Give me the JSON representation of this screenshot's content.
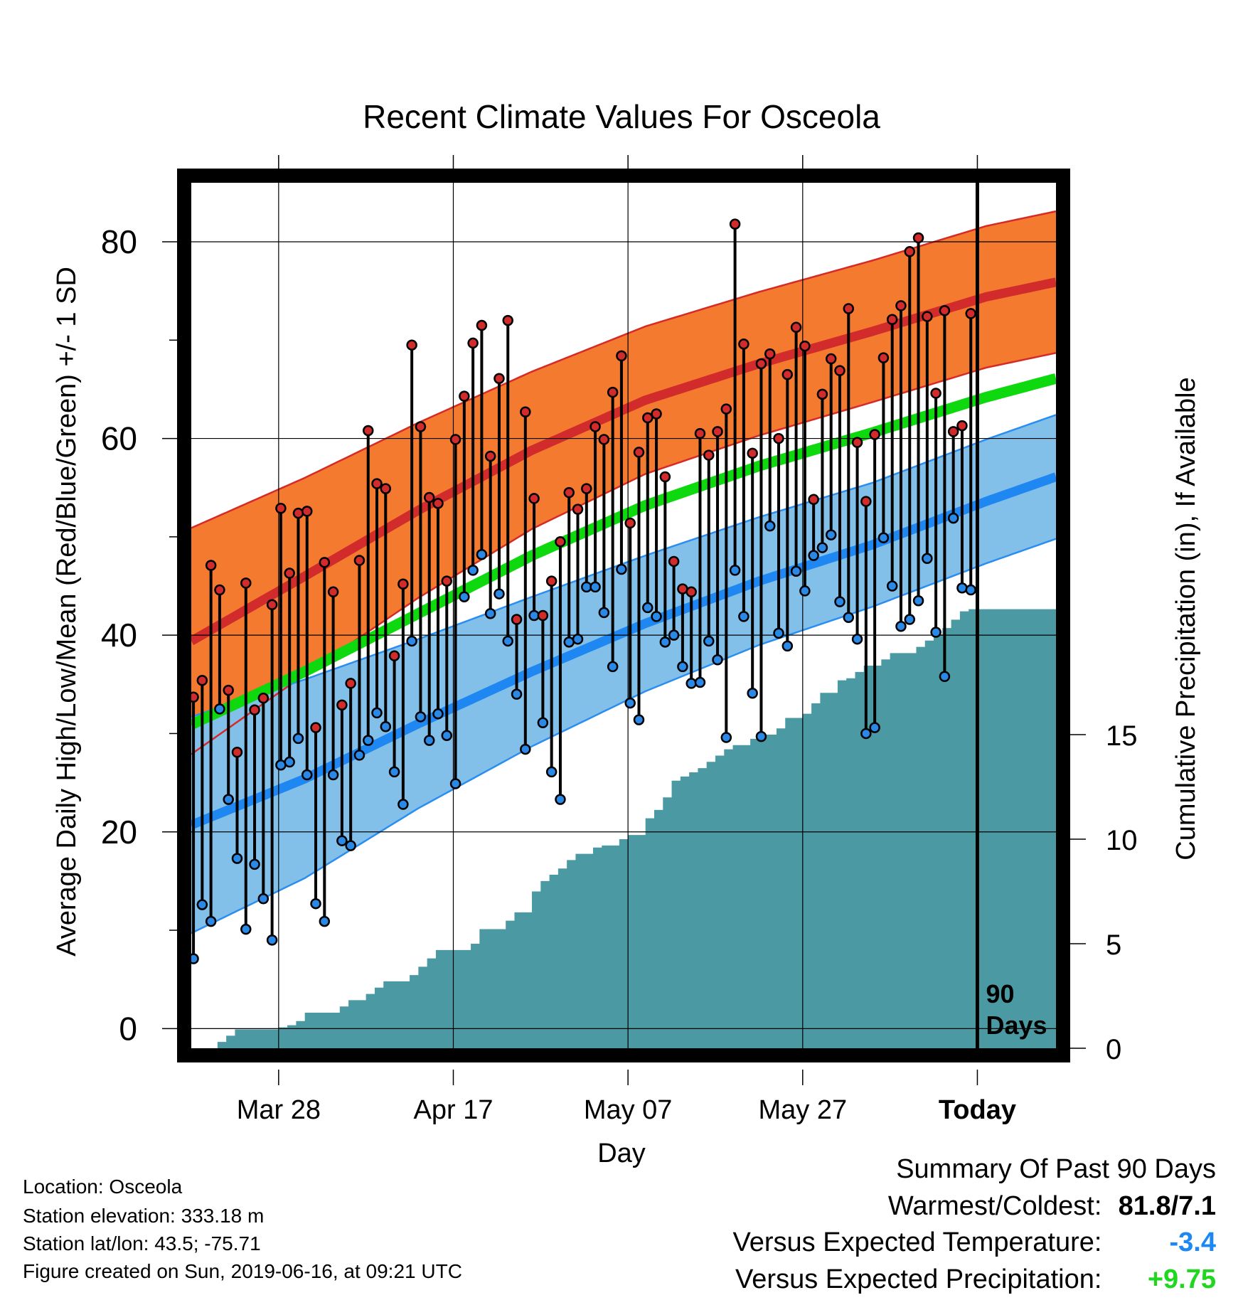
{
  "chart_data": {
    "type": "line",
    "title": "Recent Climate Values For Osceola",
    "xlabel": "Day",
    "ylabel_left": "Average Daily High/Low/Mean (Red/Blue/Green) +/- 1 SD",
    "ylabel_right": "Cumulative Precipitation (in), If Available",
    "x_ticks": [
      {
        "day": 10,
        "label": "Mar 28"
      },
      {
        "day": 30,
        "label": "Apr 17"
      },
      {
        "day": 50,
        "label": "May 07"
      },
      {
        "day": 70,
        "label": "May 27"
      },
      {
        "day": 90,
        "label": "Today"
      }
    ],
    "xlim": [
      0,
      99
    ],
    "ylim_left": [
      -2,
      86
    ],
    "y_ticks_left": [
      0,
      20,
      40,
      60,
      80
    ],
    "y_ticks_right": [
      0,
      5,
      10,
      15
    ],
    "ylim_right": [
      0,
      41.4
    ],
    "today_marker": {
      "day": 90,
      "label_line1": "90",
      "label_line2": "Days"
    },
    "normals": {
      "days": [
        0,
        13,
        26,
        39,
        52,
        65,
        78,
        91,
        99
      ],
      "high_mean": [
        39.4,
        46.0,
        52.7,
        58.8,
        63.9,
        67.6,
        70.9,
        74.4,
        75.9
      ],
      "high_sd": [
        11.5,
        10.0,
        8.9,
        8.0,
        7.5,
        7.3,
        7.2,
        7.2,
        7.2
      ],
      "avg_mean": [
        30.9,
        36.3,
        42.2,
        48.1,
        53.2,
        57.2,
        60.6,
        64.2,
        66.1
      ],
      "low_mean": [
        20.7,
        25.4,
        31.0,
        36.3,
        41.2,
        45.5,
        49.2,
        53.6,
        56.1
      ],
      "low_sd": [
        11.0,
        10.1,
        8.6,
        7.6,
        6.9,
        6.5,
        6.3,
        6.3,
        6.3
      ]
    },
    "series": [
      {
        "name": "High",
        "values": [
          33.7,
          35.4,
          47.1,
          44.6,
          34.4,
          28.1,
          45.3,
          32.4,
          33.6,
          43.1,
          52.9,
          46.3,
          52.4,
          52.6,
          30.6,
          47.4,
          44.4,
          32.9,
          35.1,
          47.6,
          60.8,
          55.4,
          54.9,
          37.9,
          45.2,
          69.5,
          61.2,
          54.0,
          53.4,
          45.5,
          59.9,
          64.3,
          69.7,
          71.5,
          58.2,
          66.1,
          72.0,
          41.6,
          62.7,
          53.9,
          42.0,
          45.5,
          49.5,
          54.5,
          52.8,
          54.9,
          61.2,
          59.9,
          64.7,
          68.4,
          51.4,
          58.6,
          62.1,
          62.5,
          56.1,
          47.5,
          44.7,
          44.4,
          60.5,
          58.3,
          60.7,
          63.0,
          81.8,
          69.6,
          58.5,
          67.6,
          68.6,
          60.0,
          66.5,
          71.3,
          69.4,
          53.8,
          64.5,
          68.1,
          66.9,
          73.2,
          59.6,
          53.6,
          60.4,
          68.2,
          72.1,
          73.5,
          79.0,
          80.4,
          72.4,
          64.6,
          73.0,
          60.7,
          61.3,
          72.7
        ]
      },
      {
        "name": "Low",
        "values": [
          7.1,
          12.6,
          10.9,
          32.5,
          23.3,
          17.3,
          10.1,
          16.7,
          13.2,
          9.0,
          26.8,
          27.1,
          29.5,
          25.8,
          12.7,
          10.9,
          25.8,
          19.1,
          18.6,
          27.8,
          29.3,
          32.1,
          30.7,
          26.1,
          22.8,
          39.4,
          31.7,
          29.3,
          32.0,
          29.8,
          24.9,
          43.9,
          46.6,
          48.2,
          42.2,
          44.2,
          39.4,
          34.0,
          28.4,
          42.0,
          31.1,
          26.1,
          23.3,
          39.3,
          39.6,
          44.9,
          44.9,
          42.3,
          36.8,
          46.7,
          33.1,
          31.4,
          42.8,
          41.9,
          39.3,
          40.0,
          36.8,
          35.1,
          35.2,
          39.4,
          37.5,
          29.6,
          46.6,
          41.9,
          34.1,
          29.7,
          51.1,
          40.2,
          38.9,
          46.5,
          44.5,
          48.1,
          48.9,
          50.2,
          43.4,
          41.8,
          39.6,
          30.0,
          30.6,
          49.9,
          45.0,
          40.9,
          41.6,
          43.5,
          47.8,
          40.3,
          35.8,
          51.9,
          44.8,
          44.6
        ]
      },
      {
        "name": "Cumulative Precipitation",
        "steps": [
          [
            3,
            0.3
          ],
          [
            4,
            0.6
          ],
          [
            5,
            0.9
          ],
          [
            10,
            1.0
          ],
          [
            11,
            1.1
          ],
          [
            12,
            1.3
          ],
          [
            13,
            1.7
          ],
          [
            17,
            2.0
          ],
          [
            18,
            2.3
          ],
          [
            20,
            2.6
          ],
          [
            21,
            2.9
          ],
          [
            22,
            3.2
          ],
          [
            25,
            3.5
          ],
          [
            26,
            3.9
          ],
          [
            27,
            4.3
          ],
          [
            28,
            4.7
          ],
          [
            32,
            5.0
          ],
          [
            33,
            5.7
          ],
          [
            36,
            6.1
          ],
          [
            37,
            6.5
          ],
          [
            39,
            7.5
          ],
          [
            40,
            8.0
          ],
          [
            41,
            8.3
          ],
          [
            42,
            8.6
          ],
          [
            43,
            9.0
          ],
          [
            44,
            9.3
          ],
          [
            46,
            9.6
          ],
          [
            47,
            9.7
          ],
          [
            49,
            10.0
          ],
          [
            50,
            10.2
          ],
          [
            52,
            11.0
          ],
          [
            53,
            11.4
          ],
          [
            54,
            12.0
          ],
          [
            55,
            12.8
          ],
          [
            56,
            13.0
          ],
          [
            57,
            13.2
          ],
          [
            58,
            13.4
          ],
          [
            59,
            13.7
          ],
          [
            60,
            14.0
          ],
          [
            61,
            14.3
          ],
          [
            62,
            14.5
          ],
          [
            64,
            14.8
          ],
          [
            65,
            15.0
          ],
          [
            67,
            15.3
          ],
          [
            68,
            15.8
          ],
          [
            70,
            16.0
          ],
          [
            71,
            16.5
          ],
          [
            72,
            17.0
          ],
          [
            74,
            17.6
          ],
          [
            75,
            17.7
          ],
          [
            76,
            18.0
          ],
          [
            77,
            18.3
          ],
          [
            79,
            18.6
          ],
          [
            80,
            18.9
          ],
          [
            83,
            19.2
          ],
          [
            84,
            19.5
          ],
          [
            85,
            19.8
          ],
          [
            86,
            20.1
          ],
          [
            87,
            20.5
          ],
          [
            88,
            20.9
          ],
          [
            89,
            21.0
          ],
          [
            99,
            21.0
          ]
        ]
      }
    ],
    "grid": true,
    "colors": {
      "high_band": "#f47a30",
      "high_band_edge": "#d62a27",
      "high_mean_line": "#d12b2c",
      "low_band": "#83c0e9",
      "low_band_edge": "#2a8ef0",
      "low_mean_line": "#1f87f1",
      "avg_mean_line": "#0ed80e",
      "precip_fill": "#4b9aa3",
      "high_dot": "#d12b2c",
      "low_dot": "#2a88e6",
      "temp_departure": "#1e88f2",
      "precip_departure": "#1fd71f"
    }
  },
  "info": {
    "location": "Location: Osceola",
    "elevation": "Station elevation: 333.18 m",
    "latlon": "Station lat/lon: 43.5; -75.71",
    "created": "Figure created on Sun, 2019-06-16, at 09:21 UTC"
  },
  "summary": {
    "title": "Summary Of Past 90 Days",
    "warmest_coldest_label": "Warmest/Coldest:",
    "warmest_coldest_value": "81.8/7.1",
    "temp_label": "Versus Expected Temperature:",
    "temp_value": "-3.4",
    "precip_label": "Versus Expected Precipitation:",
    "precip_value": "+9.75"
  }
}
